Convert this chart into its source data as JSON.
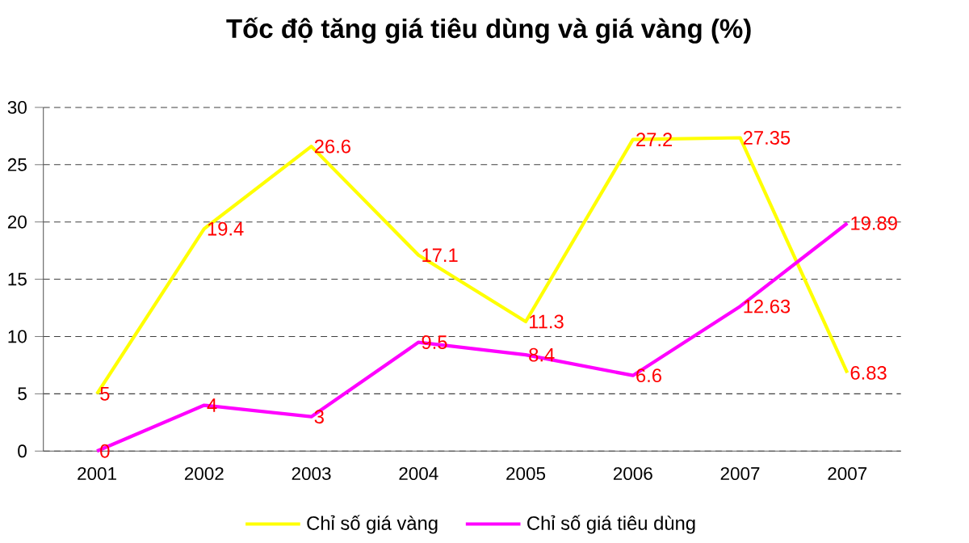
{
  "chart_data": {
    "type": "line",
    "title": "Tốc độ tăng giá tiêu dùng và giá vàng (%)",
    "categories": [
      "2001",
      "2002",
      "2003",
      "2004",
      "2005",
      "2006",
      "2007",
      "2007"
    ],
    "series": [
      {
        "name": "Chỉ số giá vàng",
        "color": "#ffff00",
        "values": [
          5,
          19.4,
          26.6,
          17.1,
          11.3,
          27.2,
          27.35,
          6.83
        ]
      },
      {
        "name": "Chỉ số giá tiêu dùng",
        "color": "#ff00ff",
        "values": [
          0,
          4,
          3,
          9.5,
          8.4,
          6.6,
          12.63,
          19.89
        ]
      }
    ],
    "ylim": [
      0,
      30
    ],
    "yticks": [
      0,
      5,
      10,
      15,
      20,
      25,
      30
    ],
    "grid": "y",
    "legend": "bottom",
    "data_labels": true,
    "marker": "none",
    "line_style": "solid"
  }
}
